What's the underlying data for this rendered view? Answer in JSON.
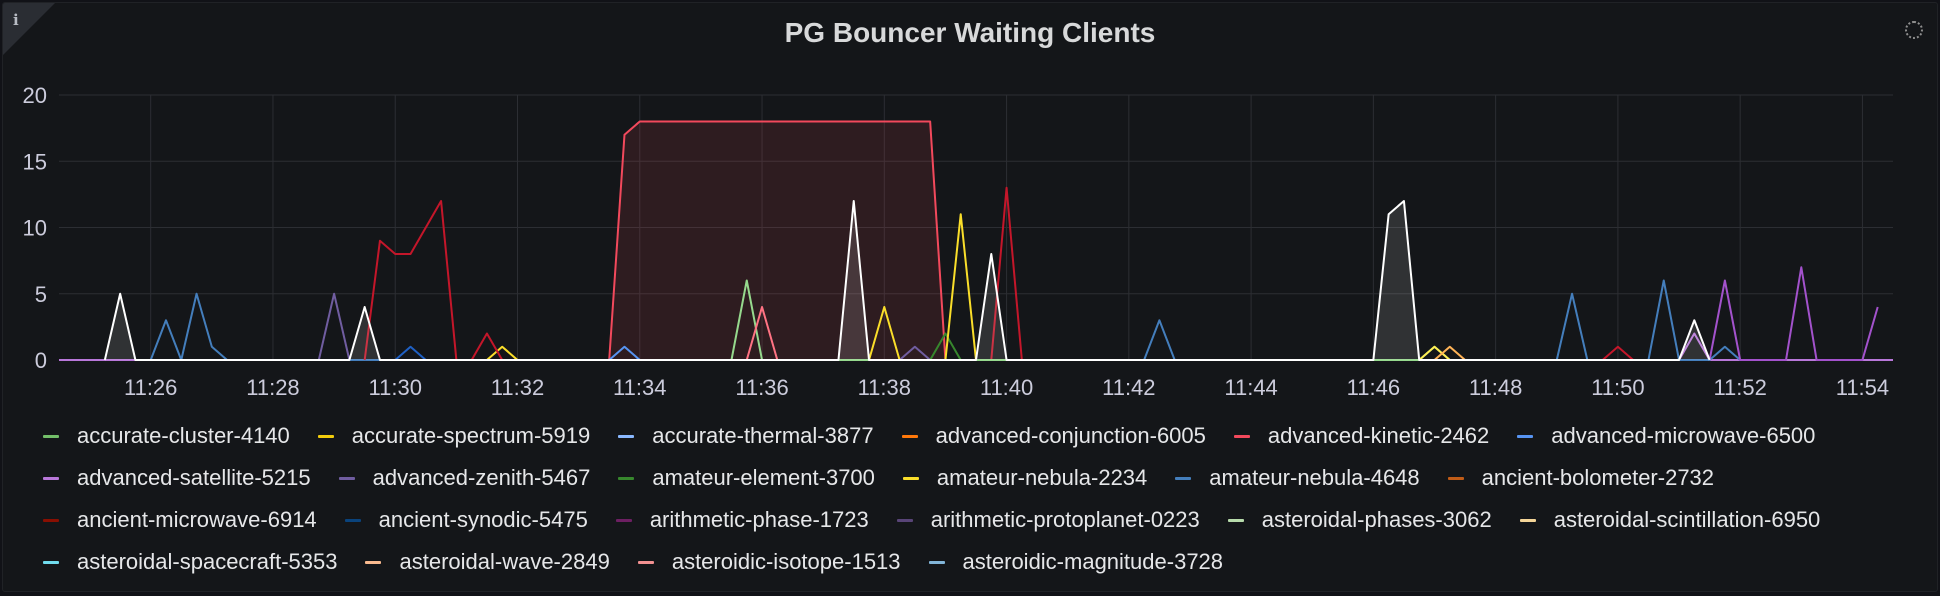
{
  "panel": {
    "title": "PG Bouncer Waiting Clients",
    "info_glyph": "i",
    "info_icon": "info-icon",
    "loading_icon": "loading-spinner-icon"
  },
  "colors": {
    "background": "#141619",
    "grid": "#2c2e33",
    "axis_text": "#ccccdc"
  },
  "chart_data": {
    "type": "line",
    "title": "PG Bouncer Waiting Clients",
    "xlabel": "",
    "ylabel": "",
    "x_range": [
      "11:24:30",
      "11:54:30"
    ],
    "ylim": [
      0,
      20
    ],
    "x_ticks": [
      "11:26",
      "11:28",
      "11:30",
      "11:32",
      "11:34",
      "11:36",
      "11:38",
      "11:40",
      "11:42",
      "11:44",
      "11:46",
      "11:48",
      "11:50",
      "11:52",
      "11:54"
    ],
    "y_ticks": [
      0,
      5,
      10,
      15,
      20
    ],
    "grid": true,
    "legend_position": "bottom",
    "series": [
      {
        "name": "accurate-cluster-4140",
        "color": "#73bf69",
        "points": []
      },
      {
        "name": "accurate-spectrum-5919",
        "color": "#f2cc0c",
        "points": []
      },
      {
        "name": "accurate-thermal-3877",
        "color": "#8ab8ff",
        "points": []
      },
      {
        "name": "advanced-conjunction-6005",
        "color": "#ff780a",
        "points": []
      },
      {
        "name": "advanced-kinetic-2462",
        "color": "#f2495c",
        "points": [
          [
            "11:33:30",
            0
          ],
          [
            "11:33:45",
            17
          ],
          [
            "11:34",
            18
          ],
          [
            "11:38:45",
            18
          ],
          [
            "11:39",
            0
          ]
        ],
        "fill": true
      },
      {
        "name": "advanced-microwave-6500",
        "color": "#5794f2",
        "points": [
          [
            "11:33:30",
            0
          ],
          [
            "11:33:45",
            1
          ],
          [
            "11:34",
            0
          ]
        ]
      },
      {
        "name": "advanced-satellite-5215",
        "color": "#b877d9",
        "points": [
          [
            "11:51",
            0
          ],
          [
            "11:51:15",
            2
          ],
          [
            "11:51:30",
            0
          ]
        ]
      },
      {
        "name": "advanced-zenith-5467",
        "color": "#705da0",
        "points": [
          [
            "11:28:45",
            0
          ],
          [
            "11:29",
            5
          ],
          [
            "11:29:15",
            0
          ],
          [
            "11:38:15",
            0
          ],
          [
            "11:38:30",
            1
          ],
          [
            "11:38:45",
            0
          ]
        ]
      },
      {
        "name": "amateur-element-3700",
        "color": "#37872d",
        "points": [
          [
            "11:38:45",
            0
          ],
          [
            "11:39",
            2
          ],
          [
            "11:39:15",
            0
          ]
        ]
      },
      {
        "name": "amateur-nebula-2234",
        "color": "#fade2a",
        "points": [
          [
            "11:31:30",
            0
          ],
          [
            "11:31:45",
            1
          ],
          [
            "11:32",
            0
          ],
          [
            "11:37:45",
            0
          ],
          [
            "11:38",
            4
          ],
          [
            "11:38:15",
            0
          ],
          [
            "11:39",
            0
          ],
          [
            "11:39:15",
            11
          ],
          [
            "11:39:30",
            0
          ]
        ]
      },
      {
        "name": "amateur-nebula-4648",
        "color": "#447ebc",
        "points": [
          [
            "11:26",
            0
          ],
          [
            "11:26:15",
            3
          ],
          [
            "11:26:30",
            0
          ],
          [
            "11:26:45",
            5
          ],
          [
            "11:27",
            1
          ],
          [
            "11:27:15",
            0
          ],
          [
            "11:42:15",
            0
          ],
          [
            "11:42:30",
            3
          ],
          [
            "11:42:45",
            0
          ],
          [
            "11:49",
            0
          ],
          [
            "11:49:15",
            5
          ],
          [
            "11:49:30",
            0
          ],
          [
            "11:50:30",
            0
          ],
          [
            "11:50:45",
            6
          ],
          [
            "11:51",
            0
          ],
          [
            "11:51:30",
            0
          ],
          [
            "11:51:45",
            1
          ],
          [
            "11:52",
            0
          ]
        ]
      },
      {
        "name": "ancient-bolometer-2732",
        "color": "#c15c17",
        "points": []
      },
      {
        "name": "ancient-microwave-6914",
        "color": "#c4162a",
        "points": [
          [
            "11:29:30",
            0
          ],
          [
            "11:29:45",
            9
          ],
          [
            "11:30",
            8
          ],
          [
            "11:30:15",
            8
          ],
          [
            "11:30:45",
            12
          ],
          [
            "11:31",
            0
          ],
          [
            "11:31:15",
            0
          ],
          [
            "11:31:30",
            2
          ],
          [
            "11:31:45",
            0
          ],
          [
            "11:39:45",
            0
          ],
          [
            "11:40",
            13
          ],
          [
            "11:40:15",
            0
          ],
          [
            "11:49:45",
            0
          ],
          [
            "11:50",
            1
          ],
          [
            "11:50:15",
            0
          ]
        ]
      },
      {
        "name": "ancient-synodic-5475",
        "color": "#1f60c4",
        "points": [
          [
            "11:30",
            0
          ],
          [
            "11:30:15",
            1
          ],
          [
            "11:30:30",
            0
          ]
        ]
      },
      {
        "name": "arithmetic-phase-1723",
        "color": "#a352cc",
        "points": [
          [
            "11:51:30",
            0
          ],
          [
            "11:51:45",
            6
          ],
          [
            "11:52",
            0
          ],
          [
            "11:52:45",
            0
          ],
          [
            "11:53",
            7
          ],
          [
            "11:53:15",
            0
          ],
          [
            "11:54",
            0
          ],
          [
            "11:54:15",
            4
          ]
        ]
      },
      {
        "name": "arithmetic-protoplanet-0223",
        "color": "#8f3bb8",
        "points": []
      },
      {
        "name": "asteroidal-phases-3062",
        "color": "#96d98d",
        "points": [
          [
            "11:35:30",
            0
          ],
          [
            "11:35:45",
            6
          ],
          [
            "11:36",
            0
          ],
          [
            "11:46:45",
            0
          ],
          [
            "11:47",
            1
          ],
          [
            "11:47:15",
            0
          ]
        ]
      },
      {
        "name": "asteroidal-scintillation-6950",
        "color": "#ffee52",
        "points": [
          [
            "11:46:45",
            0
          ],
          [
            "11:47",
            1
          ],
          [
            "11:47:15",
            0
          ]
        ]
      },
      {
        "name": "asteroidal-spacecraft-5353",
        "color": "#73bf69",
        "points": []
      },
      {
        "name": "asteroidal-wave-2849",
        "color": "#ffb357",
        "points": [
          [
            "11:47",
            0
          ],
          [
            "11:47:15",
            1
          ],
          [
            "11:47:30",
            0
          ]
        ]
      },
      {
        "name": "asteroidic-isotope-1513",
        "color": "#ff7383",
        "points": [
          [
            "11:35:45",
            0
          ],
          [
            "11:36",
            4
          ],
          [
            "11:36:15",
            0
          ]
        ]
      },
      {
        "name": "asteroidic-magnitude-3728",
        "color": "#ffffff",
        "points": [
          [
            "11:25:15",
            0
          ],
          [
            "11:25:30",
            5
          ],
          [
            "11:25:45",
            0
          ],
          [
            "11:29:15",
            0
          ],
          [
            "11:29:30",
            4
          ],
          [
            "11:29:45",
            0
          ],
          [
            "11:37:15",
            0
          ],
          [
            "11:37:30",
            12
          ],
          [
            "11:37:45",
            0
          ],
          [
            "11:39:30",
            0
          ],
          [
            "11:39:45",
            8
          ],
          [
            "11:40",
            0
          ],
          [
            "11:46",
            0
          ],
          [
            "11:46:15",
            11
          ],
          [
            "11:46:30",
            12
          ],
          [
            "11:46:45",
            0
          ],
          [
            "11:51",
            0
          ],
          [
            "11:51:15",
            3
          ],
          [
            "11:51:30",
            0
          ]
        ],
        "fill": true
      }
    ]
  },
  "legend": [
    {
      "label": "accurate-cluster-4140",
      "color": "#73bf69"
    },
    {
      "label": "accurate-spectrum-5919",
      "color": "#f2cc0c"
    },
    {
      "label": "accurate-thermal-3877",
      "color": "#8ab8ff"
    },
    {
      "label": "advanced-conjunction-6005",
      "color": "#ff780a"
    },
    {
      "label": "advanced-kinetic-2462",
      "color": "#f2495c"
    },
    {
      "label": "advanced-microwave-6500",
      "color": "#5794f2"
    },
    {
      "label": "advanced-satellite-5215",
      "color": "#b877d9"
    },
    {
      "label": "advanced-zenith-5467",
      "color": "#705da0"
    },
    {
      "label": "amateur-element-3700",
      "color": "#37872d"
    },
    {
      "label": "amateur-nebula-2234",
      "color": "#fade2a"
    },
    {
      "label": "amateur-nebula-4648",
      "color": "#447ebc"
    },
    {
      "label": "ancient-bolometer-2732",
      "color": "#c15c17"
    },
    {
      "label": "ancient-microwave-6914",
      "color": "#890f02"
    },
    {
      "label": "ancient-synodic-5475",
      "color": "#0a437c"
    },
    {
      "label": "arithmetic-phase-1723",
      "color": "#6d1f62"
    },
    {
      "label": "arithmetic-protoplanet-0223",
      "color": "#584477"
    },
    {
      "label": "asteroidal-phases-3062",
      "color": "#b7dbab"
    },
    {
      "label": "asteroidal-scintillation-6950",
      "color": "#f4d598"
    },
    {
      "label": "asteroidal-spacecraft-5353",
      "color": "#70dbed"
    },
    {
      "label": "asteroidal-wave-2849",
      "color": "#f9ba8f"
    },
    {
      "label": "asteroidic-isotope-1513",
      "color": "#f29191"
    },
    {
      "label": "asteroidic-magnitude-3728",
      "color": "#82b5d8"
    }
  ]
}
